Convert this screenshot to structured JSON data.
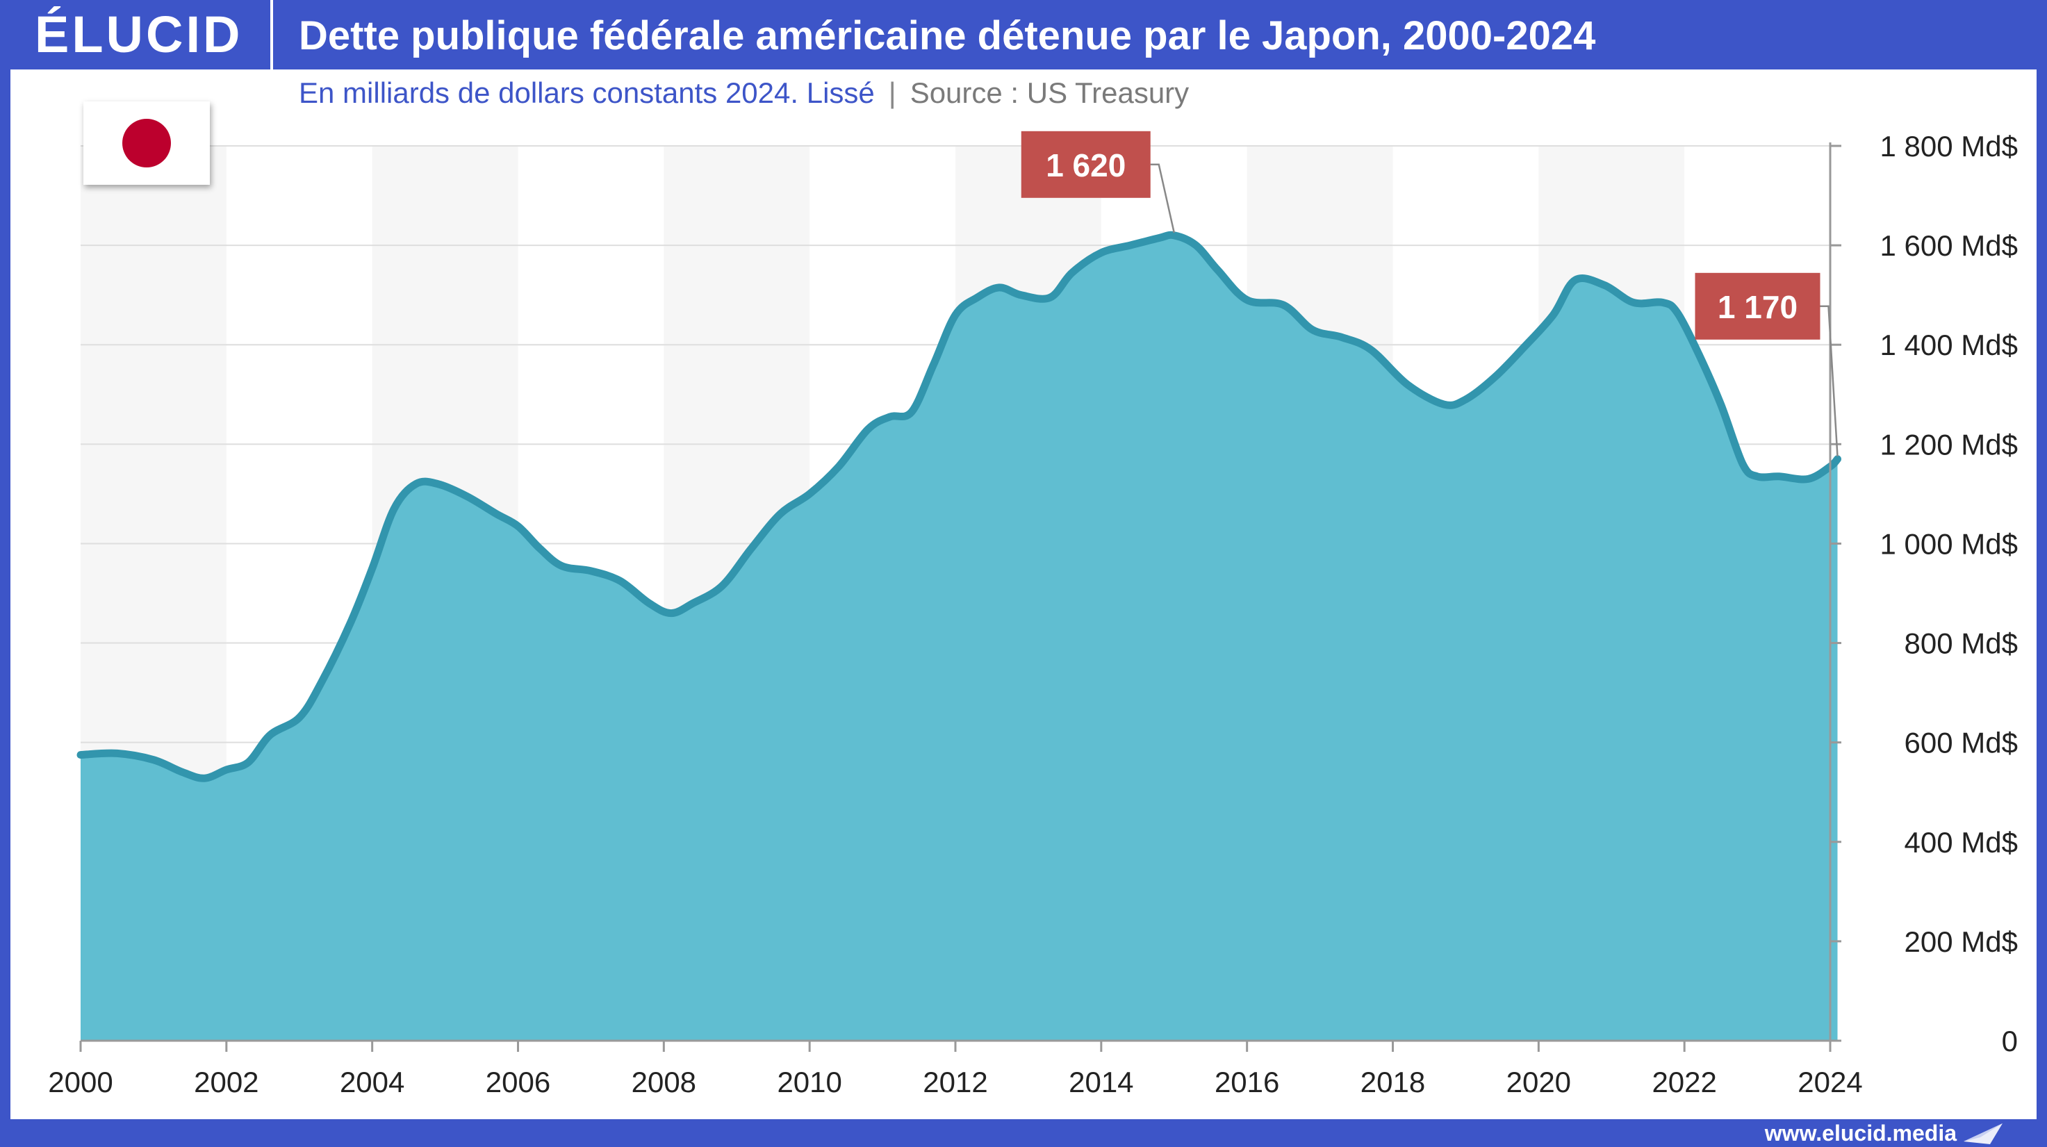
{
  "header": {
    "logo": "ÉLUCID",
    "title": "Dette publique fédérale américaine détenue par le Japon, 2000-2024"
  },
  "subtitle": {
    "text": "En milliards de dollars constants 2024. Lissé",
    "separator": "|",
    "source": "Source : US Treasury"
  },
  "footer": {
    "website": "www.elucid.media"
  },
  "flag_icon": "japan-flag-icon",
  "colors": {
    "brand": "#3d55c8",
    "area_fill": "#60bed1",
    "line": "#3295ad",
    "callout": "#c0504d",
    "band": "#f6f6f6"
  },
  "chart_data": {
    "type": "area",
    "title": "Dette publique fédérale américaine détenue par le Japon, 2000-2024",
    "subtitle": "En milliards de dollars constants 2024. Lissé",
    "x_ticks": [
      "2000",
      "2002",
      "2004",
      "2006",
      "2008",
      "2010",
      "2012",
      "2014",
      "2016",
      "2018",
      "2020",
      "2022",
      "2024"
    ],
    "y_ticks": [
      {
        "value": 0,
        "label": "0"
      },
      {
        "value": 200,
        "label": "200 Md$"
      },
      {
        "value": 400,
        "label": "400 Md$"
      },
      {
        "value": 600,
        "label": "600 Md$"
      },
      {
        "value": 800,
        "label": "800 Md$"
      },
      {
        "value": 1000,
        "label": "1 000 Md$"
      },
      {
        "value": 1200,
        "label": "1 200 Md$"
      },
      {
        "value": 1400,
        "label": "1 400 Md$"
      },
      {
        "value": 1600,
        "label": "1 600 Md$"
      },
      {
        "value": 1800,
        "label": "1 800 Md$"
      }
    ],
    "xlim": [
      2000,
      2024
    ],
    "ylim": [
      0,
      1800
    ],
    "y_axis_side": "right",
    "grid": true,
    "alternating_bands": true,
    "series": [
      {
        "points": [
          [
            2000.0,
            575
          ],
          [
            2000.5,
            578
          ],
          [
            2001.0,
            565
          ],
          [
            2001.4,
            540
          ],
          [
            2001.7,
            528
          ],
          [
            2002.0,
            545
          ],
          [
            2002.3,
            560
          ],
          [
            2002.6,
            615
          ],
          [
            2003.0,
            650
          ],
          [
            2003.3,
            720
          ],
          [
            2003.7,
            840
          ],
          [
            2004.0,
            950
          ],
          [
            2004.3,
            1070
          ],
          [
            2004.6,
            1120
          ],
          [
            2004.9,
            1120
          ],
          [
            2005.3,
            1095
          ],
          [
            2005.7,
            1060
          ],
          [
            2006.0,
            1035
          ],
          [
            2006.3,
            990
          ],
          [
            2006.6,
            955
          ],
          [
            2007.0,
            945
          ],
          [
            2007.4,
            925
          ],
          [
            2007.8,
            880
          ],
          [
            2008.1,
            860
          ],
          [
            2008.4,
            880
          ],
          [
            2008.8,
            915
          ],
          [
            2009.2,
            990
          ],
          [
            2009.6,
            1060
          ],
          [
            2010.0,
            1100
          ],
          [
            2010.4,
            1155
          ],
          [
            2010.8,
            1230
          ],
          [
            2011.1,
            1255
          ],
          [
            2011.4,
            1265
          ],
          [
            2011.7,
            1360
          ],
          [
            2012.0,
            1460
          ],
          [
            2012.3,
            1495
          ],
          [
            2012.6,
            1515
          ],
          [
            2012.9,
            1500
          ],
          [
            2013.3,
            1495
          ],
          [
            2013.6,
            1545
          ],
          [
            2014.0,
            1585
          ],
          [
            2014.4,
            1600
          ],
          [
            2014.8,
            1615
          ],
          [
            2015.0,
            1620
          ],
          [
            2015.3,
            1600
          ],
          [
            2015.6,
            1550
          ],
          [
            2016.0,
            1490
          ],
          [
            2016.5,
            1480
          ],
          [
            2016.9,
            1430
          ],
          [
            2017.3,
            1415
          ],
          [
            2017.7,
            1390
          ],
          [
            2018.2,
            1320
          ],
          [
            2018.7,
            1280
          ],
          [
            2019.0,
            1290
          ],
          [
            2019.4,
            1335
          ],
          [
            2019.8,
            1395
          ],
          [
            2020.2,
            1460
          ],
          [
            2020.5,
            1530
          ],
          [
            2020.9,
            1520
          ],
          [
            2021.3,
            1485
          ],
          [
            2021.7,
            1485
          ],
          [
            2021.9,
            1465
          ],
          [
            2022.2,
            1380
          ],
          [
            2022.5,
            1280
          ],
          [
            2022.8,
            1160
          ],
          [
            2023.0,
            1135
          ],
          [
            2023.3,
            1135
          ],
          [
            2023.7,
            1130
          ],
          [
            2024.0,
            1155
          ],
          [
            2024.1,
            1170
          ]
        ]
      }
    ],
    "callouts": [
      {
        "label": "1 620",
        "x": 2015.0,
        "y": 1620
      },
      {
        "label": "1 170",
        "x": 2024.1,
        "y": 1170
      }
    ]
  }
}
